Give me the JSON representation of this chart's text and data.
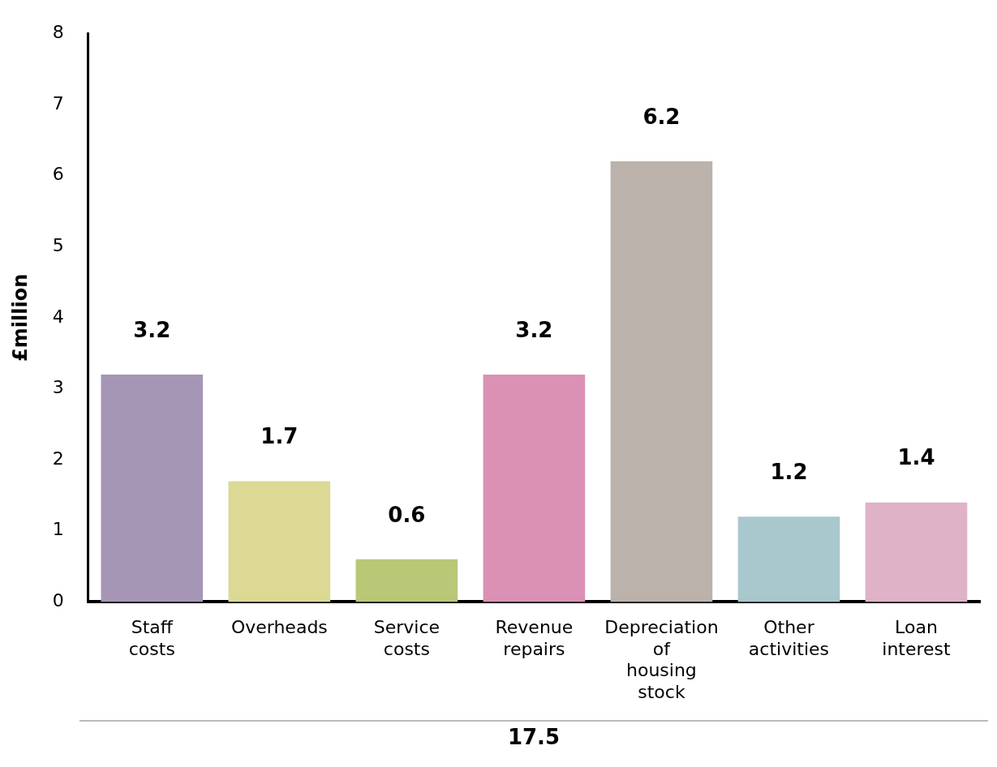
{
  "chart_data": {
    "type": "bar",
    "ylabel": "£million",
    "categories": [
      "Staff costs",
      "Overheads",
      "Service costs",
      "Revenue repairs",
      "Depreciation of housing stock",
      "Other activities",
      "Loan interest"
    ],
    "values": [
      3.2,
      1.7,
      0.6,
      3.2,
      6.2,
      1.2,
      1.4
    ],
    "colors": [
      "#a596b5",
      "#dcd995",
      "#b9c877",
      "#da91b3",
      "#bbb2ac",
      "#a8c8cd",
      "#e0b2c8"
    ],
    "ylim": [
      0,
      8
    ],
    "yticks": [
      0,
      1,
      2,
      3,
      4,
      5,
      6,
      7,
      8
    ],
    "grid": false,
    "legend": false,
    "data_labels": true,
    "annotations": [
      "17.5"
    ]
  }
}
